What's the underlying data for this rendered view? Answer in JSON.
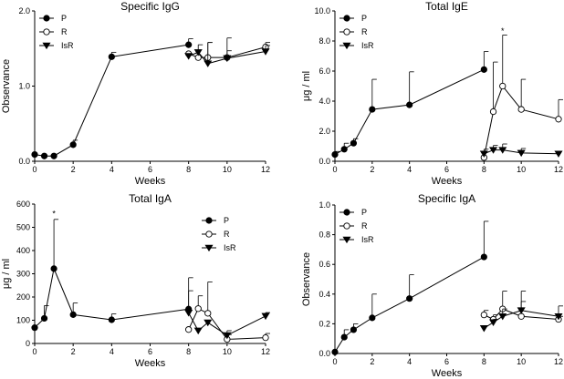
{
  "chart_data": [
    {
      "type": "line",
      "title": "Specific IgG",
      "xlabel": "Weeks",
      "ylabel": "Observance",
      "xlim": [
        0,
        12
      ],
      "ylim": [
        0,
        2.0
      ],
      "xticks": [
        0,
        2,
        4,
        6,
        8,
        10,
        12
      ],
      "yticks": [
        0.0,
        1.0,
        2.0
      ],
      "ytick_labels": [
        "0.0",
        "1.0",
        "2.0"
      ],
      "legend_position": "top-left",
      "series": [
        {
          "name": "P",
          "marker": "filled-circle",
          "points": [
            [
              0,
              0.09
            ],
            [
              0.5,
              0.07
            ],
            [
              1,
              0.07
            ],
            [
              2,
              0.22
            ],
            [
              4,
              1.39
            ],
            [
              8,
              1.55
            ]
          ],
          "err": [
            0,
            0,
            0,
            0.06,
            0.06,
            0.08
          ]
        },
        {
          "name": "R",
          "marker": "open-circle",
          "points": [
            [
              8,
              1.43
            ],
            [
              8.5,
              1.38
            ],
            [
              9,
              1.38
            ],
            [
              10,
              1.38
            ],
            [
              12,
              1.52
            ]
          ],
          "err": [
            0,
            0,
            0.2,
            0.26,
            0.06
          ]
        },
        {
          "name": "IsR",
          "marker": "filled-triangle",
          "points": [
            [
              8,
              1.4
            ],
            [
              8.5,
              1.45
            ],
            [
              9,
              1.3
            ],
            [
              10,
              1.37
            ],
            [
              12,
              1.46
            ]
          ],
          "err": [
            0,
            0.1,
            0.28,
            0.1,
            0.08
          ]
        }
      ]
    },
    {
      "type": "line",
      "title": "Total IgE",
      "xlabel": "Weeks",
      "ylabel": "μg / ml",
      "xlim": [
        0,
        12
      ],
      "ylim": [
        0,
        10.0
      ],
      "xticks": [
        0,
        2,
        4,
        6,
        8,
        10,
        12
      ],
      "yticks": [
        0,
        2,
        4,
        6,
        8,
        10
      ],
      "ytick_labels": [
        "0.0",
        "2.0",
        "4.0",
        "6.0",
        "8.0",
        "10.0"
      ],
      "legend_position": "top-left",
      "annotations": [
        {
          "text": "*",
          "x": 9,
          "y": 8.5
        }
      ],
      "series": [
        {
          "name": "P",
          "marker": "filled-circle",
          "points": [
            [
              0,
              0.45
            ],
            [
              0.5,
              0.8
            ],
            [
              1,
              1.2
            ],
            [
              2,
              3.45
            ],
            [
              4,
              3.75
            ],
            [
              8,
              6.1
            ]
          ],
          "err": [
            0.2,
            0.4,
            0.3,
            2.0,
            2.2,
            1.2
          ]
        },
        {
          "name": "R",
          "marker": "open-circle",
          "points": [
            [
              8,
              0.25
            ],
            [
              8.5,
              3.3
            ],
            [
              9,
              5.0
            ],
            [
              10,
              3.45
            ],
            [
              12,
              2.8
            ]
          ],
          "err": [
            0,
            3.3,
            3.4,
            2.0,
            1.3
          ]
        },
        {
          "name": "IsR",
          "marker": "filled-triangle",
          "points": [
            [
              8,
              0.5
            ],
            [
              8.5,
              0.75
            ],
            [
              9,
              0.75
            ],
            [
              10,
              0.55
            ],
            [
              12,
              0.5
            ]
          ],
          "err": [
            0.3,
            0.3,
            0.4,
            0.3,
            0
          ]
        }
      ]
    },
    {
      "type": "line",
      "title": "Total IgA",
      "xlabel": "Weeks",
      "ylabel": "μg / ml",
      "xlim": [
        0,
        12
      ],
      "ylim": [
        0,
        600
      ],
      "xticks": [
        0,
        2,
        4,
        6,
        8,
        10,
        12
      ],
      "yticks": [
        0,
        100,
        200,
        300,
        400,
        500,
        600
      ],
      "ytick_labels": [
        "0",
        "100",
        "200",
        "300",
        "400",
        "500",
        "600"
      ],
      "legend_position": "top-right",
      "annotations": [
        {
          "text": "*",
          "x": 1,
          "y": 548
        }
      ],
      "series": [
        {
          "name": "P",
          "marker": "filled-circle",
          "points": [
            [
              0,
              68
            ],
            [
              0.5,
              108
            ],
            [
              1,
              322
            ],
            [
              2,
              124
            ],
            [
              4,
              102
            ],
            [
              8,
              148
            ]
          ],
          "err": [
            0,
            55,
            212,
            50,
            25,
            135
          ]
        },
        {
          "name": "R",
          "marker": "open-circle",
          "points": [
            [
              8,
              60
            ],
            [
              8.5,
              150
            ],
            [
              9,
              130
            ],
            [
              10,
              18
            ],
            [
              12,
              25
            ]
          ],
          "err": [
            0,
            55,
            135,
            20,
            18
          ]
        },
        {
          "name": "IsR",
          "marker": "filled-triangle",
          "points": [
            [
              8,
              132
            ],
            [
              8.5,
              55
            ],
            [
              9,
              90
            ],
            [
              10,
              35
            ],
            [
              12,
              118
            ]
          ],
          "err": [
            95,
            0,
            0,
            20,
            15
          ]
        }
      ]
    },
    {
      "type": "line",
      "title": "Specific IgA",
      "xlabel": "Weeks",
      "ylabel": "Observance",
      "xlim": [
        0,
        12
      ],
      "ylim": [
        0,
        1.0
      ],
      "xticks": [
        0,
        2,
        4,
        6,
        8,
        10,
        12
      ],
      "yticks": [
        0,
        0.2,
        0.4,
        0.6,
        0.8,
        1.0
      ],
      "ytick_labels": [
        "0.0",
        "0.2",
        "0.4",
        "0.6",
        "0.8",
        "1.0"
      ],
      "legend_position": "top-left",
      "series": [
        {
          "name": "P",
          "marker": "filled-circle",
          "points": [
            [
              0,
              0.01
            ],
            [
              0.5,
              0.11
            ],
            [
              1,
              0.16
            ],
            [
              2,
              0.24
            ],
            [
              4,
              0.37
            ],
            [
              8,
              0.65
            ]
          ],
          "err": [
            0,
            0.05,
            0.04,
            0.16,
            0.16,
            0.24
          ]
        },
        {
          "name": "R",
          "marker": "open-circle",
          "points": [
            [
              8,
              0.26
            ],
            [
              8.5,
              0.23
            ],
            [
              9,
              0.3
            ],
            [
              10,
              0.25
            ],
            [
              12,
              0.23
            ]
          ],
          "err": [
            0.03,
            0.03,
            0.12,
            0.1,
            0.02
          ]
        },
        {
          "name": "IsR",
          "marker": "filled-triangle",
          "points": [
            [
              8,
              0.17
            ],
            [
              8.5,
              0.21
            ],
            [
              9,
              0.25
            ],
            [
              10,
              0.29
            ],
            [
              12,
              0.25
            ]
          ],
          "err": [
            0,
            0.02,
            0.05,
            0.13,
            0.07
          ]
        }
      ]
    }
  ]
}
